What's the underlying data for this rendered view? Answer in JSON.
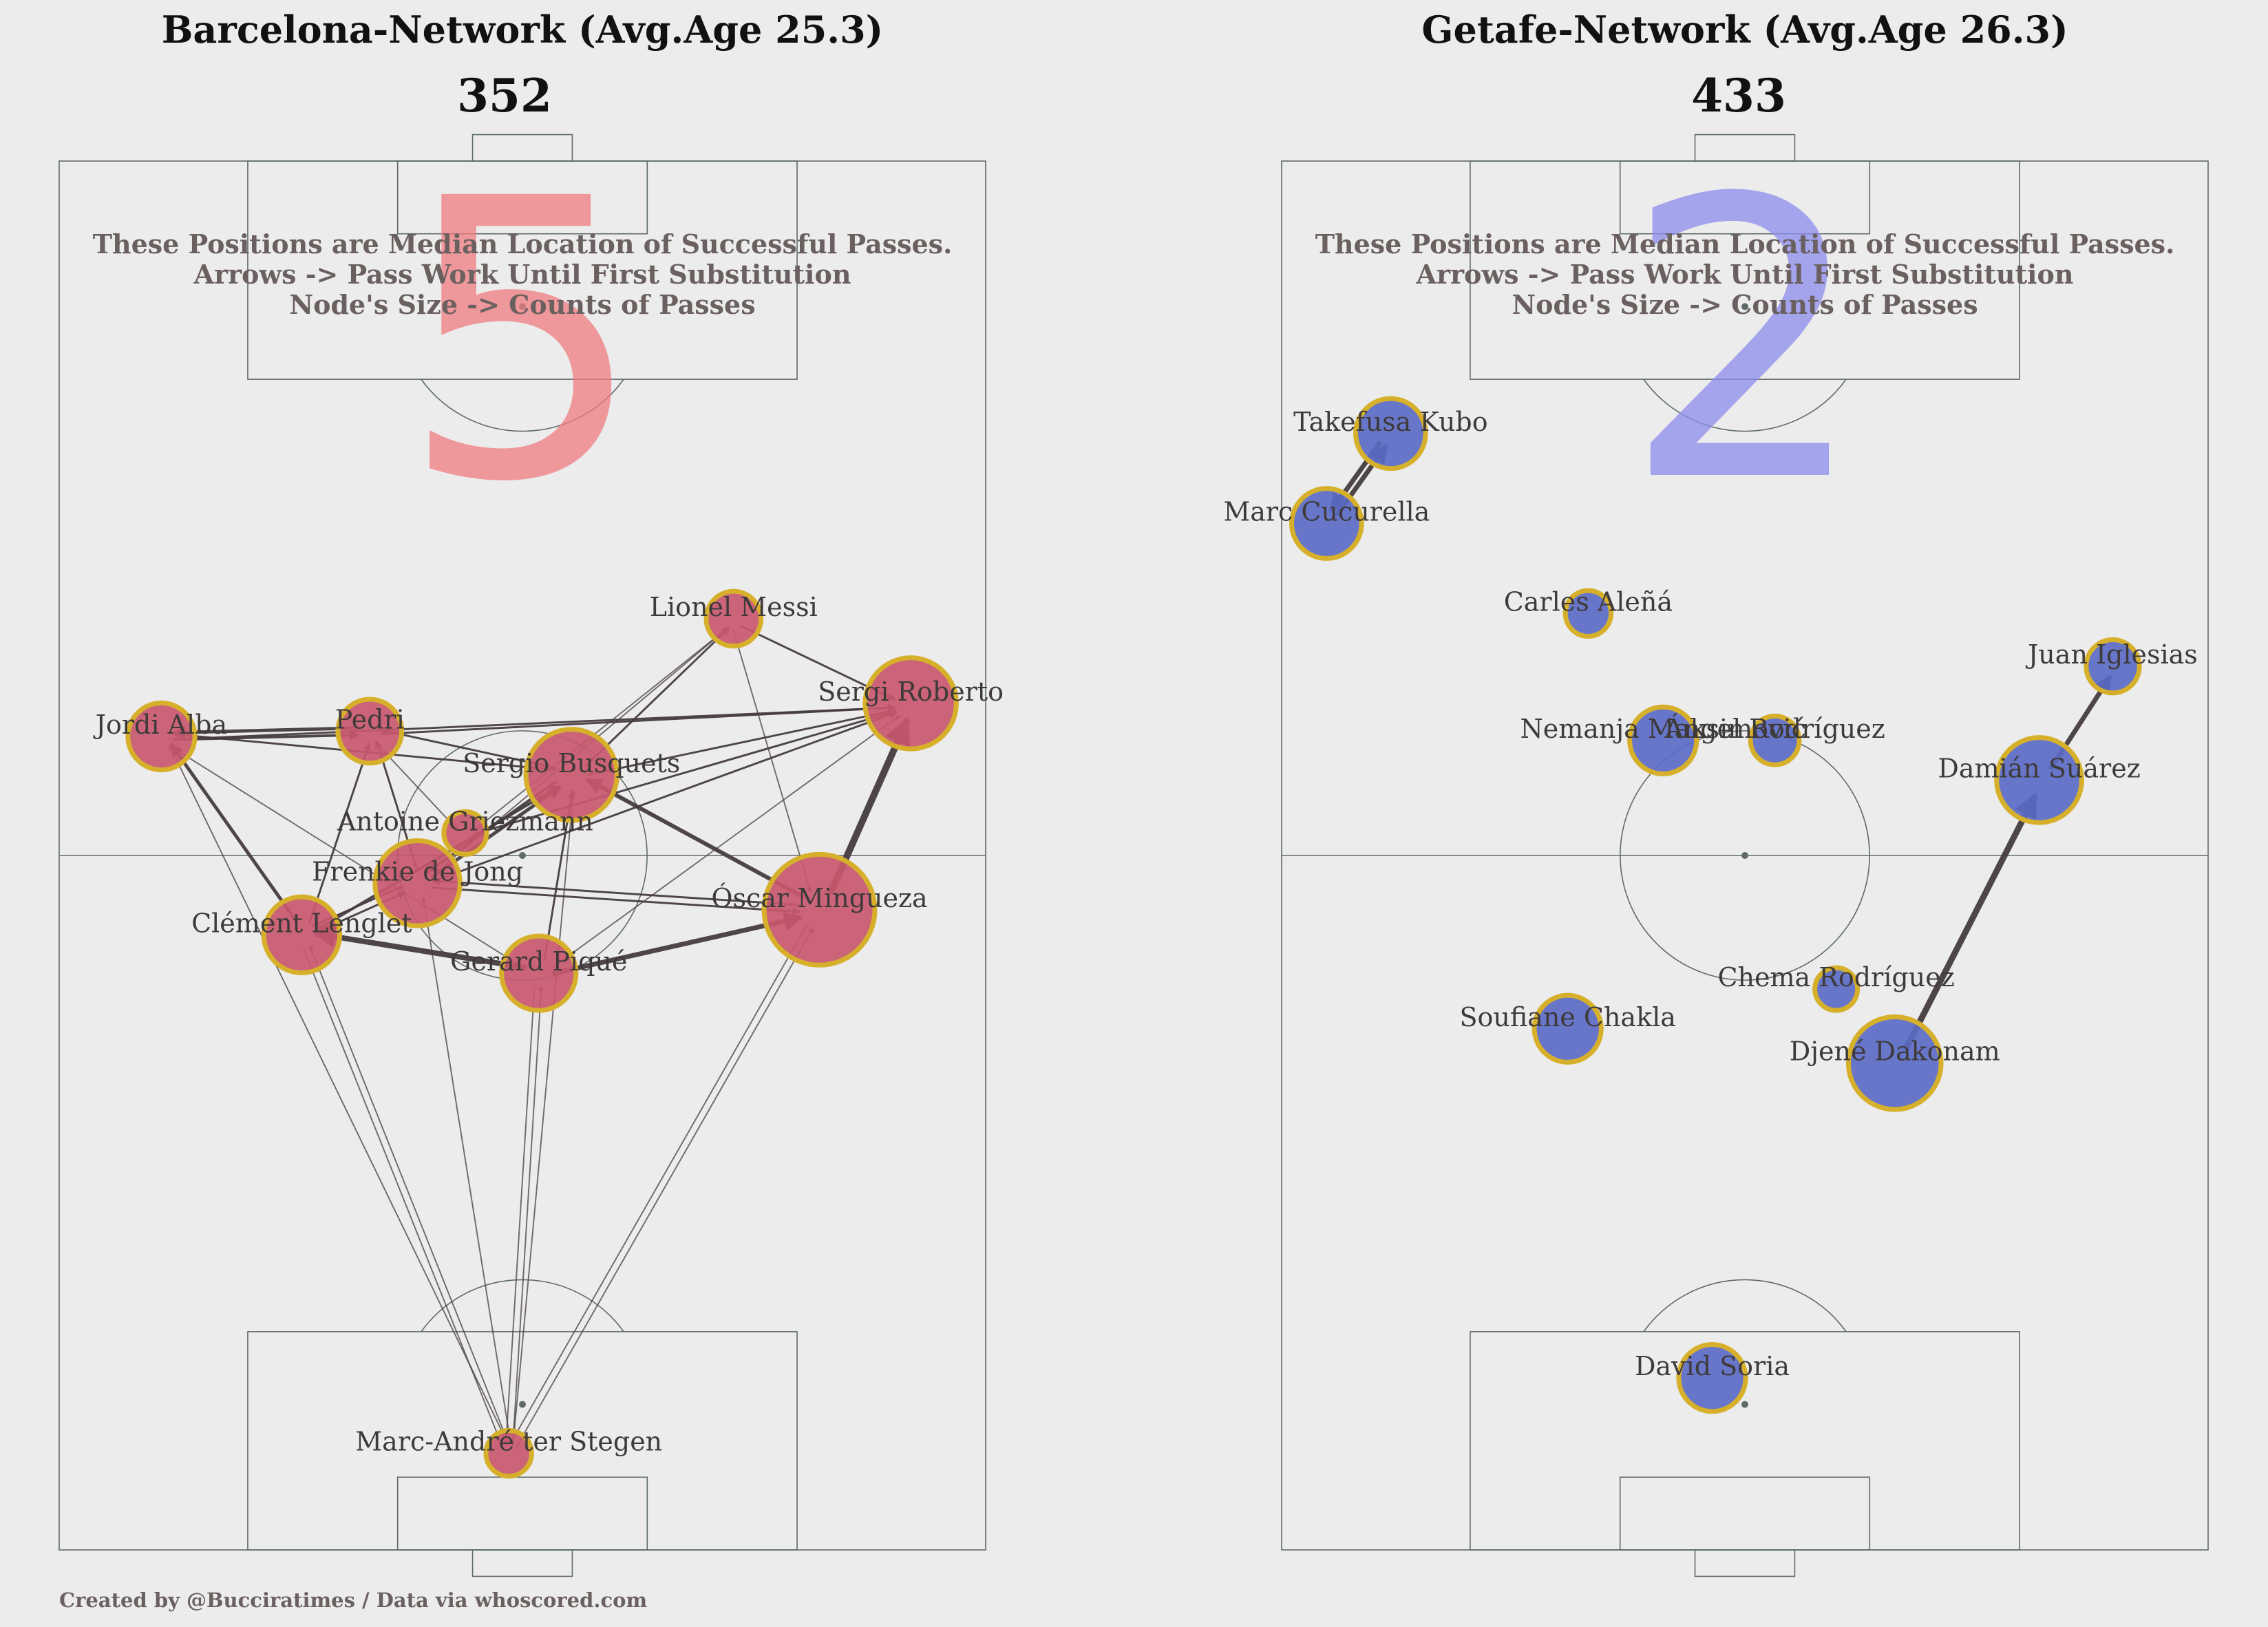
{
  "credit": "Created by @Bucciratimes / Data via whoscored.com",
  "colors": {
    "background": "#ececec",
    "pitch_line": "#5f6a6a",
    "arrow": "#463c3f",
    "node_edge": "#d7b02b",
    "note_text": "#6b6060"
  },
  "chart_data": [
    {
      "type": "network",
      "title": "Barcelona-Network (Avg.Age 25.3)",
      "formation": "352",
      "score": "5",
      "score_color": "#f07c80",
      "node_color": "#c8586e",
      "notes": [
        "These Positions are Median Location of Successful Passes.",
        "Arrows -> Pass Work Until First Substitution",
        "Node's Size -> Counts of Passes"
      ],
      "x_range": [
        0,
        68
      ],
      "y_range": [
        0,
        105
      ],
      "players": [
        {
          "name": "Lionel Messi",
          "x": 49.5,
          "y": 70.4,
          "passes": 18
        },
        {
          "name": "Sergi Roberto",
          "x": 62.5,
          "y": 64.0,
          "passes": 42
        },
        {
          "name": "Jordi Alba",
          "x": 7.5,
          "y": 61.5,
          "passes": 26
        },
        {
          "name": "Pedri",
          "x": 22.8,
          "y": 61.9,
          "passes": 24
        },
        {
          "name": "Sergio Busquets",
          "x": 37.6,
          "y": 58.6,
          "passes": 42
        },
        {
          "name": "Antoine Griezmann",
          "x": 29.8,
          "y": 54.2,
          "passes": 10
        },
        {
          "name": "Frenkie de Jong",
          "x": 26.3,
          "y": 50.4,
          "passes": 38
        },
        {
          "name": "Óscar Mingueza",
          "x": 55.8,
          "y": 48.4,
          "passes": 55
        },
        {
          "name": "Clément Lenglet",
          "x": 17.8,
          "y": 46.5,
          "passes": 32
        },
        {
          "name": "Gerard Piqué",
          "x": 35.2,
          "y": 43.6,
          "passes": 31
        },
        {
          "name": "Marc-André ter Stegen",
          "x": 33.0,
          "y": 7.3,
          "passes": 12
        }
      ],
      "passes": [
        {
          "from": "Óscar Mingueza",
          "to": "Sergi Roberto",
          "count": 9
        },
        {
          "from": "Gerard Piqué",
          "to": "Clément Lenglet",
          "count": 7
        },
        {
          "from": "Gerard Piqué",
          "to": "Óscar Mingueza",
          "count": 6
        },
        {
          "from": "Clément Lenglet",
          "to": "Jordi Alba",
          "count": 4
        },
        {
          "from": "Óscar Mingueza",
          "to": "Sergio Busquets",
          "count": 5
        },
        {
          "from": "Pedri",
          "to": "Jordi Alba",
          "count": 4
        },
        {
          "from": "Jordi Alba",
          "to": "Pedri",
          "count": 3
        },
        {
          "from": "Frenkie de Jong",
          "to": "Sergio Busquets",
          "count": 4
        },
        {
          "from": "Sergio Busquets",
          "to": "Frenkie de Jong",
          "count": 3
        },
        {
          "from": "Clément Lenglet",
          "to": "Sergio Busquets",
          "count": 3
        },
        {
          "from": "Sergio Busquets",
          "to": "Jordi Alba",
          "count": 2
        },
        {
          "from": "Frenkie de Jong",
          "to": "Óscar Mingueza",
          "count": 2
        },
        {
          "from": "Óscar Mingueza",
          "to": "Frenkie de Jong",
          "count": 2
        },
        {
          "from": "Sergio Busquets",
          "to": "Sergi Roberto",
          "count": 2
        },
        {
          "from": "Sergio Busquets",
          "to": "Lionel Messi",
          "count": 2
        },
        {
          "from": "Lionel Messi",
          "to": "Sergi Roberto",
          "count": 2
        },
        {
          "from": "Jordi Alba",
          "to": "Sergi Roberto",
          "count": 2
        },
        {
          "from": "Frenkie de Jong",
          "to": "Sergi Roberto",
          "count": 2
        },
        {
          "from": "Pedri",
          "to": "Sergi Roberto",
          "count": 2
        },
        {
          "from": "Antoine Griezmann",
          "to": "Sergi Roberto",
          "count": 2
        },
        {
          "from": "Frenkie de Jong",
          "to": "Pedri",
          "count": 2
        },
        {
          "from": "Clément Lenglet",
          "to": "Pedri",
          "count": 2
        },
        {
          "from": "Gerard Piqué",
          "to": "Sergio Busquets",
          "count": 2
        },
        {
          "from": "Clément Lenglet",
          "to": "Frenkie de Jong",
          "count": 2
        },
        {
          "from": "Frenkie de Jong",
          "to": "Clément Lenglet",
          "count": 2
        },
        {
          "from": "Sergio Busquets",
          "to": "Pedri",
          "count": 2
        },
        {
          "from": "Pedri",
          "to": "Antoine Griezmann",
          "count": 1
        },
        {
          "from": "Lionel Messi",
          "to": "Óscar Mingueza",
          "count": 1
        },
        {
          "from": "Frenkie de Jong",
          "to": "Lionel Messi",
          "count": 1
        },
        {
          "from": "Jordi Alba",
          "to": "Gerard Piqué",
          "count": 1
        },
        {
          "from": "Antoine Griezmann",
          "to": "Lionel Messi",
          "count": 1
        },
        {
          "from": "Gerard Piqué",
          "to": "Sergi Roberto",
          "count": 1
        },
        {
          "from": "Marc-André ter Stegen",
          "to": "Jordi Alba",
          "count": 1
        },
        {
          "from": "Marc-André ter Stegen",
          "to": "Clément Lenglet",
          "count": 1
        },
        {
          "from": "Marc-André ter Stegen",
          "to": "Frenkie de Jong",
          "count": 1
        },
        {
          "from": "Marc-André ter Stegen",
          "to": "Gerard Piqué",
          "count": 1
        },
        {
          "from": "Marc-André ter Stegen",
          "to": "Óscar Mingueza",
          "count": 1
        },
        {
          "from": "Marc-André ter Stegen",
          "to": "Sergio Busquets",
          "count": 1
        },
        {
          "from": "Clément Lenglet",
          "to": "Marc-André ter Stegen",
          "count": 1
        },
        {
          "from": "Gerard Piqué",
          "to": "Marc-André ter Stegen",
          "count": 1
        },
        {
          "from": "Óscar Mingueza",
          "to": "Marc-André ter Stegen",
          "count": 1
        }
      ]
    },
    {
      "type": "network",
      "title": "Getafe-Network (Avg.Age 26.3)",
      "formation": "433",
      "score": "2",
      "score_color": "#8c8cee",
      "node_color": "#5b6bc4",
      "notes": [
        "These Positions are Median Location of Successful Passes.",
        "Arrows -> Pass Work Until First Substitution",
        "Node's Size -> Counts of Passes"
      ],
      "x_range": [
        0,
        68
      ],
      "y_range": [
        0,
        105
      ],
      "players": [
        {
          "name": "Takefusa Kubo",
          "x": 8.0,
          "y": 84.4,
          "passes": 28
        },
        {
          "name": "Marc Cucurella",
          "x": 3.3,
          "y": 77.6,
          "passes": 28
        },
        {
          "name": "Carles Aleñá",
          "x": 22.5,
          "y": 70.8,
          "passes": 12
        },
        {
          "name": "Juan Iglesias",
          "x": 61.0,
          "y": 66.8,
          "passes": 17
        },
        {
          "name": "Nemanja Maksimović",
          "x": 28.0,
          "y": 61.2,
          "passes": 26
        },
        {
          "name": "Ángel Rodríguez",
          "x": 36.2,
          "y": 61.2,
          "passes": 14
        },
        {
          "name": "Damián Suárez",
          "x": 55.6,
          "y": 58.2,
          "passes": 38
        },
        {
          "name": "Chema Rodríguez",
          "x": 40.7,
          "y": 42.4,
          "passes": 10
        },
        {
          "name": "Soufiane Chakla",
          "x": 21.0,
          "y": 39.4,
          "passes": 26
        },
        {
          "name": "Djené Dakonam",
          "x": 45.0,
          "y": 36.8,
          "passes": 43
        },
        {
          "name": "David Soria",
          "x": 31.6,
          "y": 13.0,
          "passes": 26
        }
      ],
      "passes": [
        {
          "from": "Djené Dakonam",
          "to": "Damián Suárez",
          "count": 8
        },
        {
          "from": "Damián Suárez",
          "to": "Juan Iglesias",
          "count": 6
        },
        {
          "from": "Marc Cucurella",
          "to": "Takefusa Kubo",
          "count": 6
        },
        {
          "from": "Takefusa Kubo",
          "to": "Marc Cucurella",
          "count": 6
        }
      ]
    }
  ]
}
